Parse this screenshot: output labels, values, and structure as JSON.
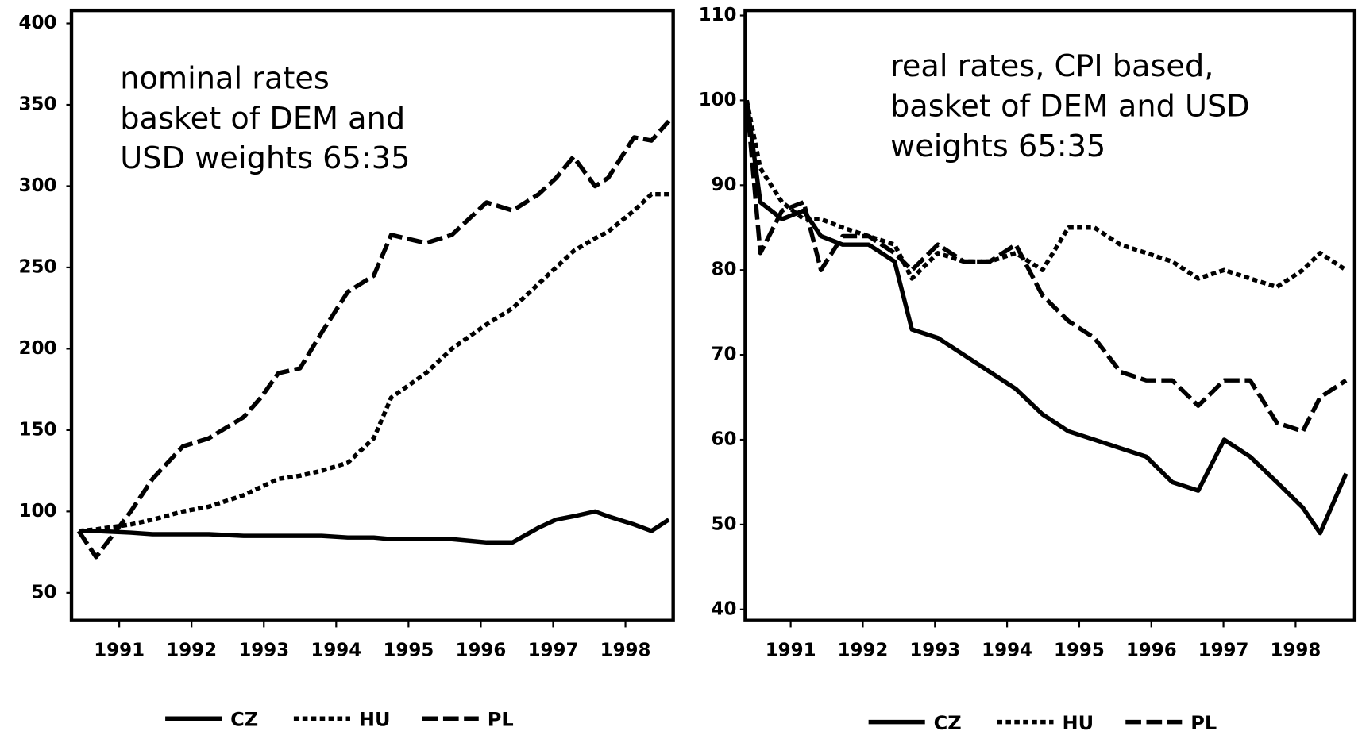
{
  "chart_data": [
    {
      "type": "line",
      "title": [
        "nominal rates",
        "basket of DEM and",
        "USD weights 65:35"
      ],
      "x": [
        1990.44,
        1990.68,
        1991.16,
        1991.46,
        1991.88,
        1992.24,
        1992.72,
        1992.96,
        1993.2,
        1993.5,
        1993.8,
        1994.16,
        1994.52,
        1994.76,
        1995.24,
        1995.6,
        1996.08,
        1996.44,
        1996.8,
        1997.04,
        1997.28,
        1997.58,
        1997.76,
        1998.12,
        1998.36,
        1998.6
      ],
      "series": [
        {
          "name": "CZ",
          "color": "#000000",
          "style": "solid",
          "values": [
            88,
            88,
            87,
            86,
            86,
            86,
            85,
            85,
            85,
            85,
            85,
            84,
            84,
            83,
            83,
            83,
            81,
            81,
            90,
            95,
            97,
            100,
            97,
            92,
            88,
            95
          ]
        },
        {
          "name": "HU",
          "color": "#000000",
          "style": "dotted",
          "values": [
            88,
            89,
            92,
            95,
            100,
            103,
            110,
            115,
            120,
            122,
            125,
            130,
            145,
            170,
            185,
            200,
            215,
            225,
            240,
            250,
            260,
            268,
            272,
            285,
            295,
            295
          ]
        },
        {
          "name": "PL",
          "color": "#000000",
          "style": "dashed",
          "values": [
            88,
            72,
            100,
            120,
            140,
            145,
            158,
            170,
            185,
            188,
            210,
            235,
            245,
            270,
            265,
            270,
            290,
            285,
            295,
            305,
            318,
            300,
            305,
            330,
            328,
            340
          ]
        }
      ],
      "xlim": [
        1990.34,
        1998.66
      ],
      "xticks": [
        1991,
        1992,
        1993,
        1994,
        1995,
        1996,
        1997,
        1998
      ],
      "ylim": [
        33,
        408
      ],
      "yticks": [
        50,
        100,
        150,
        200,
        250,
        300,
        350,
        400
      ]
    },
    {
      "type": "line",
      "title": [
        "real rates, CPI based,",
        "basket of DEM and USD",
        "weights 65:35"
      ],
      "x": [
        1990.39,
        1990.58,
        1990.88,
        1991.18,
        1991.42,
        1991.72,
        1992.08,
        1992.44,
        1992.68,
        1993.04,
        1993.4,
        1993.76,
        1994.12,
        1994.49,
        1994.85,
        1995.21,
        1995.57,
        1995.93,
        1996.29,
        1996.65,
        1997.01,
        1997.37,
        1997.74,
        1998.1,
        1998.34,
        1998.7
      ],
      "series": [
        {
          "name": "CZ",
          "color": "#000000",
          "style": "solid",
          "values": [
            100,
            88,
            86,
            87,
            84,
            83,
            83,
            81,
            73,
            72,
            70,
            68,
            66,
            63,
            61,
            60,
            59,
            58,
            55,
            54,
            60,
            58,
            55,
            52,
            49,
            56
          ]
        },
        {
          "name": "HU",
          "color": "#000000",
          "style": "dotted",
          "values": [
            100,
            92,
            88,
            86,
            86,
            85,
            84,
            83,
            79,
            82,
            81,
            81,
            82,
            80,
            85,
            85,
            83,
            82,
            81,
            79,
            80,
            79,
            78,
            80,
            82,
            80
          ]
        },
        {
          "name": "PL",
          "color": "#000000",
          "style": "dashed",
          "values": [
            100,
            82,
            87,
            88,
            80,
            84,
            84,
            82,
            80,
            83,
            81,
            81,
            83,
            77,
            74,
            72,
            68,
            67,
            67,
            64,
            67,
            67,
            62,
            61,
            65,
            67
          ]
        }
      ],
      "xlim": [
        1990.37,
        1998.82
      ],
      "xticks": [
        1991,
        1992,
        1993,
        1994,
        1995,
        1996,
        1997,
        1998
      ],
      "ylim": [
        38.7,
        110.6
      ],
      "yticks": [
        40,
        50,
        60,
        70,
        80,
        90,
        100,
        110
      ]
    }
  ]
}
